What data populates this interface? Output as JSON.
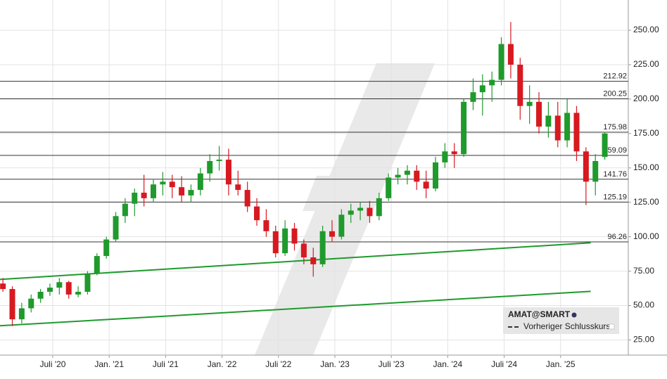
{
  "chart_data": {
    "type": "candlestick",
    "xlim": [
      0.39,
      67.2
    ],
    "xticks": [
      {
        "value": 6,
        "label": "Juli '20"
      },
      {
        "value": 12,
        "label": "Jan. '21"
      },
      {
        "value": 18,
        "label": "Juli '21"
      },
      {
        "value": 24,
        "label": "Jan. '22"
      },
      {
        "value": 30,
        "label": "Juli '22"
      },
      {
        "value": 36,
        "label": "Jan. '23"
      },
      {
        "value": 42,
        "label": "Juli '23"
      },
      {
        "value": 48,
        "label": "Jan. '24"
      },
      {
        "value": 54,
        "label": "Juli '24"
      },
      {
        "value": 60,
        "label": "Jan. '25"
      }
    ],
    "ylim": [
      14,
      272
    ],
    "yticks": [
      {
        "value": 25,
        "label": "25.00"
      },
      {
        "value": 50,
        "label": "50.00"
      },
      {
        "value": 75,
        "label": "75.00"
      },
      {
        "value": 100,
        "label": "100.00"
      },
      {
        "value": 125,
        "label": "125.00"
      },
      {
        "value": 150,
        "label": "150.00"
      },
      {
        "value": 175,
        "label": "175.00"
      },
      {
        "value": 200,
        "label": "200.00"
      },
      {
        "value": 225,
        "label": "225.00"
      },
      {
        "value": 250,
        "label": "250.00"
      }
    ],
    "grid": true,
    "up_color": "#1f9a2c",
    "down_color": "#d71920",
    "hlines": [
      212.92,
      200.25,
      175.98,
      159.09,
      141.76,
      125.19,
      96.26
    ],
    "trendlines": [
      {
        "color": "#1f9a2c",
        "x": [
          0.39,
          63.2
        ],
        "y": [
          69,
          95.6
        ]
      },
      {
        "color": "#1f9a2c",
        "x": [
          0.39,
          63.2
        ],
        "y": [
          35.3,
          60.3
        ]
      }
    ],
    "legend": {
      "symbol": "AMAT@SMART",
      "line": "Vorheriger Schlusskurs"
    },
    "x": [
      0.7,
      1.7,
      2.7,
      3.7,
      4.7,
      5.7,
      6.7,
      7.7,
      8.7,
      9.7,
      10.7,
      11.7,
      12.7,
      13.7,
      14.7,
      15.7,
      16.7,
      17.7,
      18.7,
      19.7,
      20.7,
      21.7,
      22.7,
      23.7,
      24.7,
      25.7,
      26.7,
      27.7,
      28.7,
      29.7,
      30.7,
      31.7,
      32.7,
      33.7,
      34.7,
      35.7,
      36.7,
      37.7,
      38.7,
      39.7,
      40.7,
      41.7,
      42.7,
      43.7,
      44.7,
      45.7,
      46.7,
      47.7,
      48.7,
      49.7,
      50.7,
      51.7,
      52.7,
      53.7,
      54.7,
      55.7,
      56.7,
      57.7,
      58.7,
      59.7,
      60.7,
      61.7,
      62.7,
      63.7,
      64.7
    ],
    "open": [
      66,
      62,
      40,
      48,
      55,
      60,
      63,
      67,
      58,
      60,
      73,
      86,
      98,
      115,
      124,
      132,
      128,
      138,
      140,
      136,
      130,
      134,
      146,
      155,
      156,
      138,
      134,
      122,
      112,
      104,
      88,
      106,
      95,
      85,
      80,
      104,
      100,
      116,
      119,
      121,
      115,
      128,
      143,
      145,
      148,
      140,
      135,
      154,
      162,
      160,
      198,
      205,
      210,
      214,
      240,
      225,
      195,
      198,
      180,
      188,
      170,
      190,
      162,
      140,
      158
    ],
    "high": [
      70,
      64,
      52,
      58,
      62,
      66,
      70,
      68,
      64,
      75,
      88,
      100,
      118,
      128,
      135,
      145,
      142,
      147,
      145,
      144,
      138,
      150,
      160,
      166,
      164,
      148,
      140,
      128,
      120,
      108,
      112,
      110,
      98,
      92,
      108,
      112,
      120,
      124,
      125,
      126,
      132,
      146,
      150,
      152,
      152,
      148,
      158,
      168,
      168,
      200,
      215,
      218,
      220,
      245,
      256,
      230,
      210,
      205,
      198,
      198,
      200,
      195,
      165,
      160,
      176
    ],
    "low": [
      60,
      35,
      37,
      45,
      52,
      57,
      58,
      55,
      56,
      58,
      72,
      84,
      96,
      110,
      115,
      122,
      125,
      130,
      128,
      125,
      125,
      130,
      140,
      148,
      130,
      130,
      118,
      108,
      100,
      85,
      86,
      90,
      80,
      71,
      78,
      96,
      98,
      110,
      112,
      110,
      112,
      126,
      138,
      138,
      134,
      128,
      133,
      150,
      150,
      158,
      192,
      188,
      198,
      210,
      215,
      185,
      182,
      175,
      172,
      165,
      165,
      155,
      123,
      130,
      156
    ],
    "close": [
      62,
      40,
      48,
      55,
      60,
      63,
      67,
      58,
      60,
      73,
      86,
      98,
      115,
      124,
      132,
      128,
      138,
      140,
      136,
      130,
      134,
      146,
      155,
      156,
      138,
      134,
      122,
      112,
      104,
      88,
      106,
      95,
      85,
      80,
      104,
      100,
      116,
      119,
      121,
      115,
      128,
      143,
      145,
      148,
      140,
      135,
      154,
      162,
      160,
      198,
      205,
      210,
      214,
      240,
      225,
      195,
      198,
      180,
      188,
      170,
      190,
      162,
      140,
      155,
      175
    ]
  }
}
